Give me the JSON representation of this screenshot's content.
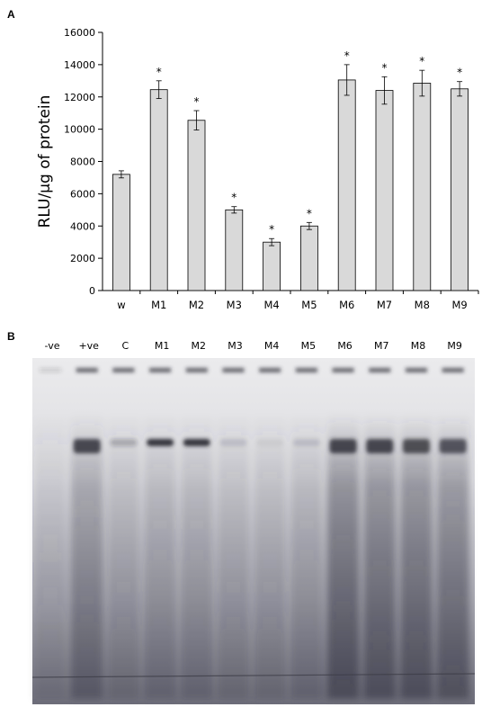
{
  "panels": {
    "a_label": "A",
    "b_label": "B"
  },
  "chart_data": {
    "type": "bar",
    "title": "",
    "xlabel": "",
    "ylabel": "RLU/µg of protein",
    "ylim": [
      0,
      16000
    ],
    "yticks": [
      0,
      2000,
      4000,
      6000,
      8000,
      10000,
      12000,
      14000,
      16000
    ],
    "categories": [
      "w",
      "M1",
      "M2",
      "M3",
      "M4",
      "M5",
      "M6",
      "M7",
      "M8",
      "M9"
    ],
    "values": [
      7200,
      12450,
      10550,
      5000,
      3000,
      4000,
      13050,
      12400,
      12850,
      12500
    ],
    "errors": [
      220,
      550,
      600,
      200,
      220,
      220,
      950,
      850,
      800,
      450
    ],
    "significance": [
      "",
      "*",
      "*",
      "*",
      "*",
      "*",
      "*",
      "*",
      "*",
      "*"
    ],
    "bar_color": "#d9d9d9",
    "grid": false,
    "legend": "none"
  },
  "gel": {
    "lanes": [
      "-ve",
      "+ve",
      "C",
      "M1",
      "M2",
      "M3",
      "M4",
      "M5",
      "M6",
      "M7",
      "M8",
      "M9"
    ],
    "band_intensity": [
      0.0,
      0.8,
      0.25,
      0.9,
      0.9,
      0.12,
      0.05,
      0.12,
      0.8,
      0.8,
      0.75,
      0.7
    ],
    "smear_intensity": [
      0.2,
      0.55,
      0.3,
      0.35,
      0.35,
      0.3,
      0.3,
      0.35,
      0.8,
      0.75,
      0.75,
      0.7
    ]
  }
}
